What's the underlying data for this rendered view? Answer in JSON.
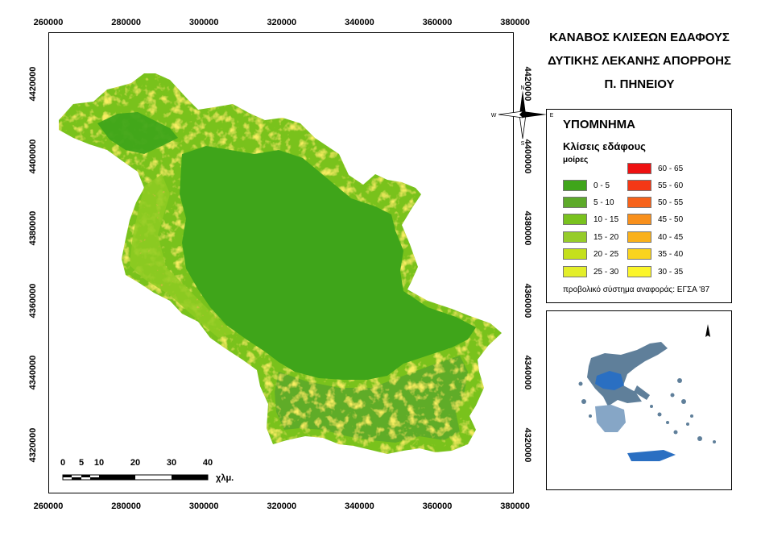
{
  "title_lines": [
    "ΚΑΝΑΒΟΣ ΚΛΙΣΕΩΝ ΕΔΑΦΟΥΣ",
    "ΔΥΤΙΚΗΣ ΛΕΚΑΝΗΣ ΑΠΟΡΡΟΗΣ",
    "Π. ΠΗΝΕΙΟΥ"
  ],
  "legend": {
    "title": "ΥΠΟΜΝΗΜΑ",
    "subtitle": "Κλίσεις εδάφους",
    "unit": "μοίρες",
    "classes_left": [
      {
        "label": "0 - 5",
        "color": "#3fa51a"
      },
      {
        "label": "5 - 10",
        "color": "#5daa2a"
      },
      {
        "label": "10 - 15",
        "color": "#79c21e"
      },
      {
        "label": "15 - 20",
        "color": "#96cc2a"
      },
      {
        "label": "20 - 25",
        "color": "#c5e01c"
      },
      {
        "label": "25 - 30",
        "color": "#e3ee2a"
      }
    ],
    "classes_right": [
      {
        "label": "60 - 65",
        "color": "#ee1111"
      },
      {
        "label": "55 - 60",
        "color": "#f43816"
      },
      {
        "label": "50 - 55",
        "color": "#f7621a"
      },
      {
        "label": "45 - 50",
        "color": "#f8901c"
      },
      {
        "label": "40 - 45",
        "color": "#f9b11c"
      },
      {
        "label": "35 - 40",
        "color": "#fad41e"
      },
      {
        "label": "30 - 35",
        "color": "#fbf52a"
      }
    ],
    "projection": "προβολικό σύστημα αναφοράς: ΕΓΣΑ '87"
  },
  "axes": {
    "x_ticks": [
      "260000",
      "280000",
      "300000",
      "320000",
      "340000",
      "360000",
      "380000"
    ],
    "x_tick_values": [
      260000,
      280000,
      300000,
      320000,
      340000,
      360000,
      380000
    ],
    "y_ticks": [
      "4420000",
      "4400000",
      "4380000",
      "4360000",
      "4340000",
      "4320000"
    ],
    "y_tick_values": [
      4420000,
      4400000,
      4380000,
      4360000,
      4340000,
      4320000
    ]
  },
  "north_arrow": {
    "n": "N",
    "s": "S",
    "e": "E",
    "w": "W"
  },
  "scale_bar": {
    "numbers": [
      "0",
      "5",
      "10",
      "20",
      "30",
      "40"
    ],
    "values": [
      0,
      5,
      10,
      20,
      30,
      40
    ],
    "unit": "χλμ."
  },
  "colors": {
    "basin_flat": "#3fa51a",
    "basin_slope": "#6fbf22",
    "greece_land": "#5f7f9a",
    "greece_basin": "#2a6fc2"
  }
}
